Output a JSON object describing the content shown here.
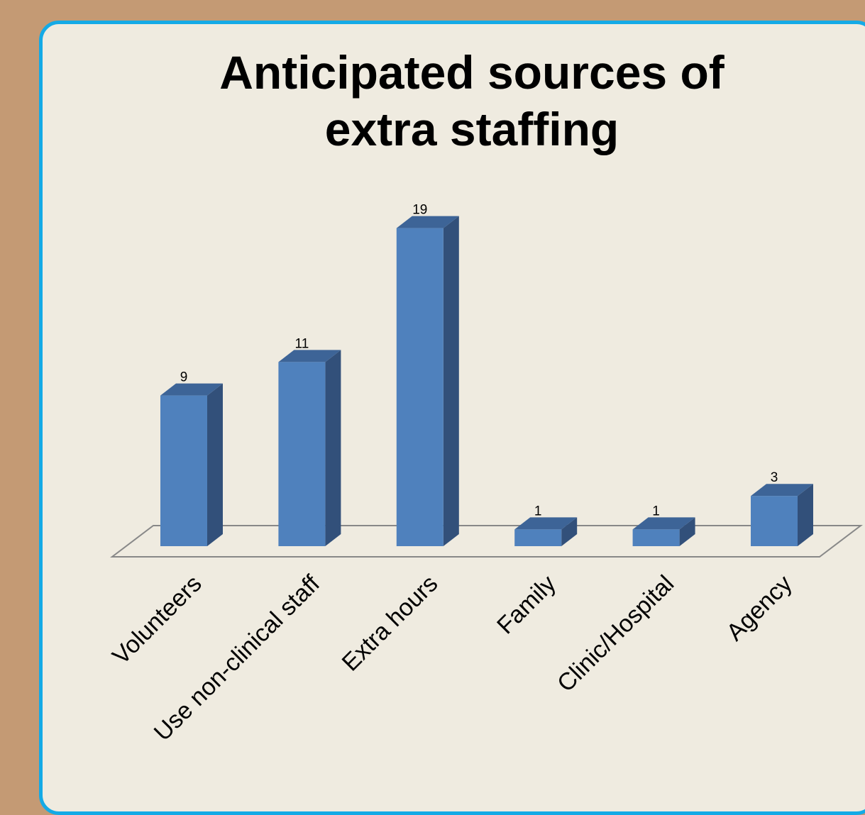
{
  "chart_data": {
    "type": "bar",
    "title_lines": [
      "Anticipated sources of",
      "extra staffing"
    ],
    "categories": [
      "Volunteers",
      "Use non-clinical staff",
      "Extra hours",
      "Family",
      "Clinic/Hospital",
      "Agency"
    ],
    "values": [
      9,
      11,
      19,
      1,
      1,
      3
    ],
    "data_labels": [
      "9",
      "11",
      "19",
      "1",
      "1",
      "3"
    ],
    "ylim": [
      0,
      19
    ],
    "grid": false,
    "legend": "none",
    "three_d": true
  },
  "colors": {
    "background": "#c49a74",
    "panel": "#efebe0",
    "panel_border": "#14aae6",
    "bar_front": "#4f81bd",
    "bar_side": "#32507a",
    "bar_top": "#3d6497",
    "floor_line": "#888888"
  }
}
